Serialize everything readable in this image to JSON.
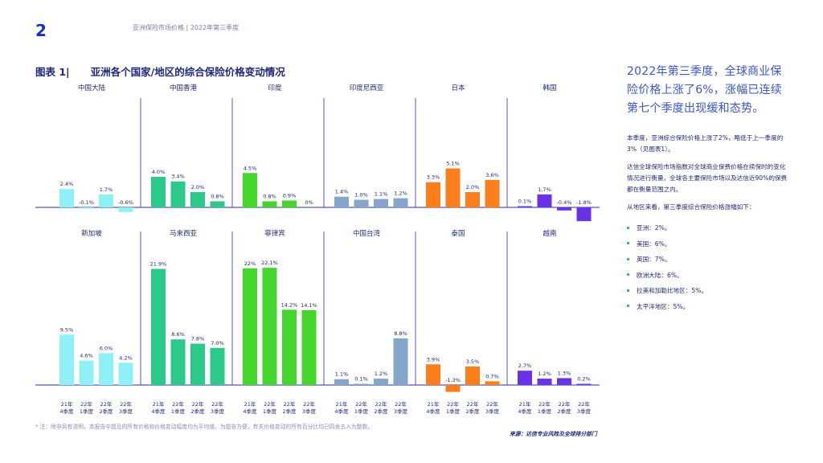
{
  "page_number": "2",
  "header_title": "亚洲保险市场价格 | 2022年第三季度",
  "figure": {
    "label": "图表 1|",
    "title": "亚洲各个国家/地区的综合保险价格变动情况"
  },
  "colors": {
    "light_blue": "#8ff0f7",
    "teal": "#2cc98a",
    "green": "#44d62c",
    "steel_blue": "#84a6cb",
    "orange": "#fb7e1b",
    "purple": "#6a32e6",
    "axis": "#2a2f9e"
  },
  "chart_data": {
    "type": "bar",
    "quarters": [
      "21年\n4季度",
      "22年\n1季度",
      "22年\n2季度",
      "22年\n3季度"
    ],
    "panels": [
      {
        "name": "中国大陆",
        "color": "light_blue",
        "values": [
          2.4,
          -0.1,
          1.7,
          -0.6
        ],
        "labels": [
          "2.4%",
          "-0.1%",
          "1.7%",
          "-0.6%"
        ]
      },
      {
        "name": "中国香港",
        "color": "teal",
        "values": [
          4.0,
          3.4,
          2.0,
          0.8
        ],
        "labels": [
          "4.0%",
          "3.4%",
          "2.0%",
          "0.8%"
        ]
      },
      {
        "name": "印度",
        "color": "green",
        "values": [
          4.5,
          0.8,
          0.9,
          0
        ],
        "labels": [
          "4.5%",
          "0.8%",
          "0.9%",
          "0%"
        ]
      },
      {
        "name": "印度尼西亚",
        "color": "steel_blue",
        "values": [
          1.4,
          1.0,
          1.1,
          1.2
        ],
        "labels": [
          "1.4%",
          "1.0%",
          "1.1%",
          "1.2%"
        ]
      },
      {
        "name": "日本",
        "color": "orange",
        "values": [
          3.3,
          5.1,
          2.0,
          3.6
        ],
        "labels": [
          "3.3%",
          "5.1%",
          "2.0%",
          "3.6%"
        ]
      },
      {
        "name": "韩国",
        "color": "purple",
        "values": [
          0.1,
          1.7,
          -0.4,
          -1.8
        ],
        "labels": [
          "0.1%",
          "1.7%",
          "-0.4%",
          "-1.8%"
        ]
      },
      {
        "name": "新加坡",
        "color": "light_blue",
        "values": [
          9.5,
          4.6,
          6.0,
          4.2
        ],
        "labels": [
          "9.5%",
          "4.6%",
          "6.0%",
          "4.2%"
        ]
      },
      {
        "name": "马来西亚",
        "color": "teal",
        "values": [
          21.9,
          8.6,
          7.8,
          7.0
        ],
        "labels": [
          "21.9%",
          "8.6%",
          "7.8%",
          "7.0%"
        ]
      },
      {
        "name": "菲律宾",
        "color": "green",
        "values": [
          22,
          22.1,
          14.2,
          14.1
        ],
        "labels": [
          "22%",
          "22.1%",
          "14.2%",
          "14.1%"
        ]
      },
      {
        "name": "中国台湾",
        "color": "steel_blue",
        "values": [
          1.1,
          0.1,
          1.2,
          8.8
        ],
        "labels": [
          "1.1%",
          "0.1%",
          "1.2%",
          "8.8%"
        ]
      },
      {
        "name": "泰国",
        "color": "orange",
        "values": [
          3.9,
          -1.3,
          3.5,
          0.7
        ],
        "labels": [
          "3.9%",
          "-1.3%",
          "3.5%",
          "0.7%"
        ]
      },
      {
        "name": "越南",
        "color": "purple",
        "values": [
          2.7,
          1.2,
          1.3,
          0.2
        ],
        "labels": [
          "2.7%",
          "1.2%",
          "1.3%",
          "0.2%"
        ]
      }
    ]
  },
  "note": "* 注：除非另有说明，本报告中提及的所有价格和价格变动幅度均为平均值。为提告方便，有关价格变动的所有百分比均已四舍五入为整数。",
  "source": "来源：达信专业风险及全球排分部门",
  "sidebar": {
    "headline": "2022年第三季度，全球商业保险价格上涨了6%，涨幅已连续第七个季度出现缓和态势。",
    "paragraphs": [
      "本季度，亚洲综合保险价格上涨了2%，略低于上一季度的3%（见图表1）。",
      "达信全球保险市场指数对全球商业保费价格在续保时的变化情况进行衡量，全球各主要保险市场以及达信近90%的保费都在衡量范围之内。",
      "从地区来看，第三季度综合保险价格涨幅如下："
    ],
    "regions": [
      "亚洲：2%。",
      "美国：6%。",
      "英国：7%。",
      "欧洲大陆：6%。",
      "拉美和加勒比地区：5%。",
      "太平洋地区：5%。"
    ]
  }
}
